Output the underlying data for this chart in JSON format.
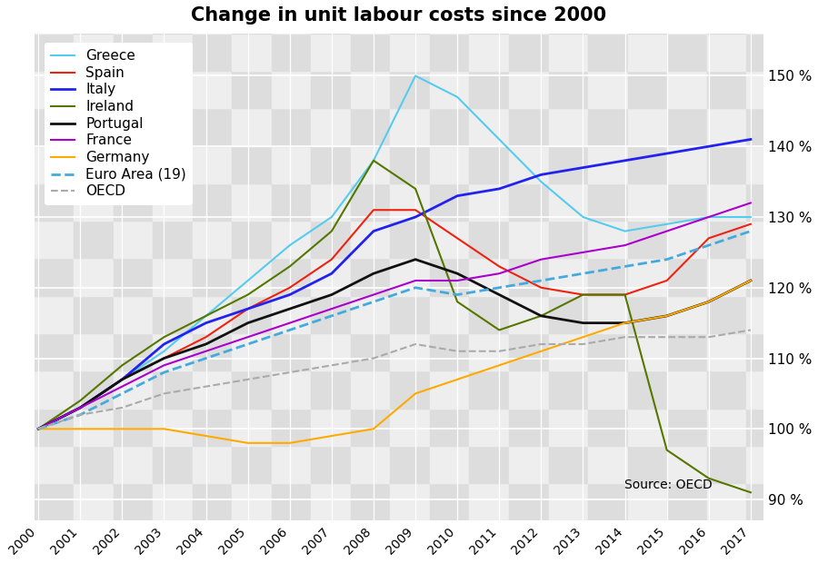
{
  "title": "Change in unit labour costs since 2000",
  "years": [
    2000,
    2001,
    2002,
    2003,
    2004,
    2005,
    2006,
    2007,
    2008,
    2009,
    2010,
    2011,
    2012,
    2013,
    2014,
    2015,
    2016,
    2017
  ],
  "series": {
    "Greece": {
      "color": "#55CCEE",
      "linestyle": "solid",
      "linewidth": 1.5,
      "values": [
        100,
        103,
        107,
        111,
        116,
        121,
        126,
        130,
        138,
        150,
        147,
        141,
        135,
        130,
        128,
        129,
        130,
        130
      ]
    },
    "Spain": {
      "color": "#EE2211",
      "linestyle": "solid",
      "linewidth": 1.5,
      "values": [
        100,
        103,
        107,
        110,
        113,
        117,
        120,
        124,
        131,
        131,
        127,
        123,
        120,
        119,
        119,
        121,
        127,
        129
      ]
    },
    "Italy": {
      "color": "#2222EE",
      "linestyle": "solid",
      "linewidth": 2.0,
      "values": [
        100,
        103,
        107,
        112,
        115,
        117,
        119,
        122,
        128,
        130,
        133,
        134,
        136,
        137,
        138,
        139,
        140,
        141
      ]
    },
    "Ireland": {
      "color": "#557700",
      "linestyle": "solid",
      "linewidth": 1.5,
      "values": [
        100,
        104,
        109,
        113,
        116,
        119,
        123,
        128,
        138,
        134,
        118,
        114,
        116,
        119,
        119,
        97,
        93,
        91
      ]
    },
    "Portugal": {
      "color": "#111111",
      "linestyle": "solid",
      "linewidth": 2.0,
      "values": [
        100,
        103,
        107,
        110,
        112,
        115,
        117,
        119,
        122,
        124,
        122,
        119,
        116,
        115,
        115,
        116,
        118,
        121
      ]
    },
    "France": {
      "color": "#AA00CC",
      "linestyle": "solid",
      "linewidth": 1.5,
      "values": [
        100,
        103,
        106,
        109,
        111,
        113,
        115,
        117,
        119,
        121,
        121,
        122,
        124,
        125,
        126,
        128,
        130,
        132
      ]
    },
    "Germany": {
      "color": "#FFAA00",
      "linestyle": "solid",
      "linewidth": 1.5,
      "values": [
        100,
        100,
        100,
        100,
        99,
        98,
        98,
        99,
        100,
        105,
        107,
        109,
        111,
        113,
        115,
        116,
        118,
        121
      ]
    },
    "Euro Area (19)": {
      "color": "#44AADD",
      "linestyle": "dashed",
      "linewidth": 2.0,
      "values": [
        100,
        102,
        105,
        108,
        110,
        112,
        114,
        116,
        118,
        120,
        119,
        120,
        121,
        122,
        123,
        124,
        126,
        128
      ]
    },
    "OECD": {
      "color": "#AAAAAA",
      "linestyle": "dashed",
      "linewidth": 1.5,
      "values": [
        100,
        102,
        103,
        105,
        106,
        107,
        108,
        109,
        110,
        112,
        111,
        111,
        112,
        112,
        113,
        113,
        113,
        114
      ]
    }
  },
  "ylim": [
    87,
    156
  ],
  "yticks": [
    90,
    100,
    110,
    120,
    130,
    140,
    150
  ],
  "ytick_labels": [
    "90 %",
    "100 %",
    "110 %",
    "120 %",
    "130 %",
    "140 %",
    "150 %"
  ],
  "source_text": "Source: OECD",
  "legend_bg": "#FFFFFF",
  "grid_color": "#DDDDDD",
  "plot_bg": "#F0F0F0",
  "checker_light": "#EEEEEE",
  "checker_dark": "#CCCCCC"
}
